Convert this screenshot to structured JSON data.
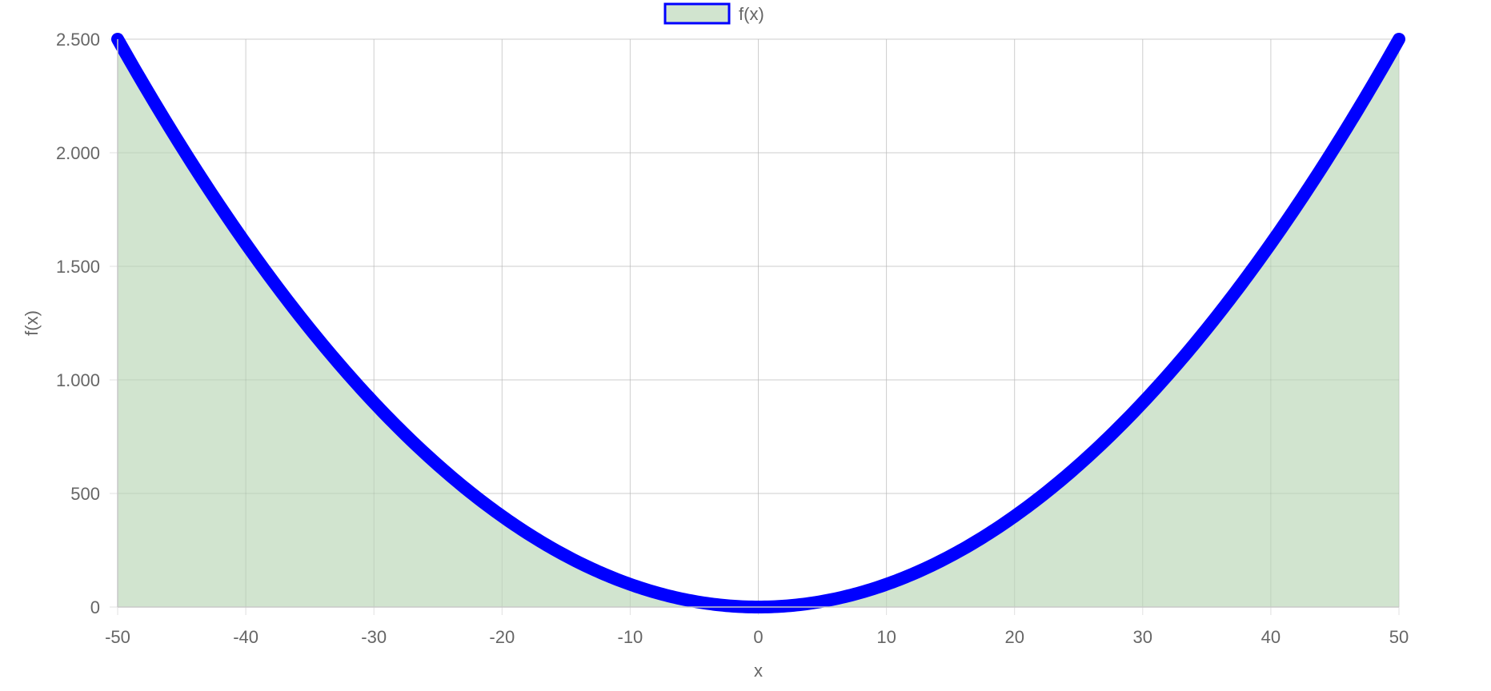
{
  "chart_data": {
    "type": "area",
    "title": "",
    "xlabel": "x",
    "ylabel": "f(x)",
    "xlim": [
      -50,
      50
    ],
    "ylim": [
      0,
      2500
    ],
    "x_ticks": [
      -50,
      -40,
      -30,
      -20,
      -10,
      0,
      10,
      20,
      30,
      40,
      50
    ],
    "x_tick_labels": [
      "-50",
      "-40",
      "-30",
      "-20",
      "-10",
      "0",
      "10",
      "20",
      "30",
      "40",
      "50"
    ],
    "y_ticks": [
      0,
      500,
      1000,
      1500,
      2000,
      2500
    ],
    "y_tick_labels": [
      "0",
      "500",
      "1.000",
      "1.500",
      "2.000",
      "2.500"
    ],
    "grid": true,
    "legend": {
      "position": "top-center",
      "entries": [
        "f(x)"
      ]
    },
    "series": [
      {
        "name": "f(x)",
        "line_color": "#0000ff",
        "fill_color": "#d1e4cf",
        "x": [
          -50,
          -45,
          -40,
          -35,
          -30,
          -25,
          -20,
          -15,
          -10,
          -5,
          0,
          5,
          10,
          15,
          20,
          25,
          30,
          35,
          40,
          45,
          50
        ],
        "y": [
          2500,
          2025,
          1600,
          1225,
          900,
          625,
          400,
          225,
          100,
          25,
          0,
          25,
          100,
          225,
          400,
          625,
          900,
          1225,
          1600,
          2025,
          2500
        ]
      }
    ],
    "grid_color": "#e0e0e0",
    "text_color": "#666666"
  }
}
